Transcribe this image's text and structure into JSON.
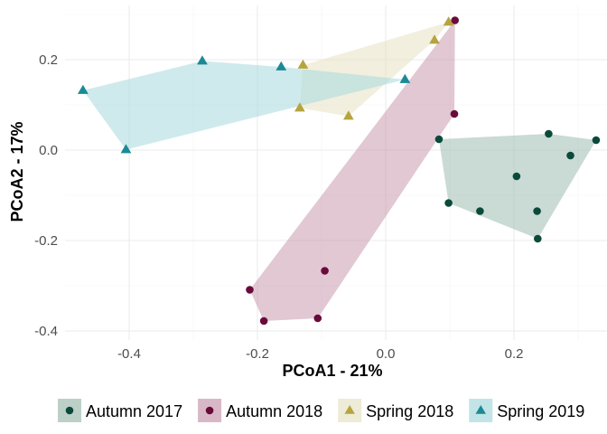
{
  "chart_data": {
    "type": "scatter",
    "title": "",
    "xlabel": "PCoA1 - 21%",
    "ylabel": "PCoA2 - 17%",
    "xlim": [
      -0.5,
      0.345
    ],
    "ylim": [
      -0.42,
      0.32
    ],
    "x_ticks": [
      -0.4,
      -0.2,
      0.0,
      0.2
    ],
    "x_tick_labels": [
      "-0.4",
      "-0.2",
      "0.0",
      "0.2"
    ],
    "y_ticks": [
      -0.4,
      -0.2,
      0.0,
      0.2
    ],
    "y_tick_labels": [
      "-0.4",
      "-0.2",
      "0.0",
      "0.2"
    ],
    "grid": true,
    "legend_position": "bottom",
    "hulls": true,
    "series": [
      {
        "name": "Autumn 2017",
        "color": "#0b4a3a",
        "fill": "#9fbcb1",
        "marker": "circle",
        "points": [
          [
            0.083,
            0.024
          ],
          [
            0.098,
            -0.117
          ],
          [
            0.147,
            -0.135
          ],
          [
            0.204,
            -0.058
          ],
          [
            0.236,
            -0.135
          ],
          [
            0.237,
            -0.196
          ],
          [
            0.254,
            0.036
          ],
          [
            0.288,
            -0.012
          ],
          [
            0.328,
            0.022
          ]
        ]
      },
      {
        "name": "Autumn 2018",
        "color": "#6a0a3b",
        "fill": "#c89aae",
        "marker": "circle",
        "points": [
          [
            0.108,
            0.287
          ],
          [
            0.107,
            0.08
          ],
          [
            -0.095,
            -0.267
          ],
          [
            -0.106,
            -0.372
          ],
          [
            -0.19,
            -0.378
          ],
          [
            -0.212,
            -0.309
          ]
        ]
      },
      {
        "name": "Spring 2018",
        "color": "#b5a43f",
        "fill": "#e7e2c5",
        "marker": "triangle",
        "points": [
          [
            0.098,
            0.283
          ],
          [
            0.076,
            0.243
          ],
          [
            -0.129,
            0.188
          ],
          [
            -0.134,
            0.093
          ],
          [
            -0.058,
            0.075
          ]
        ]
      },
      {
        "name": "Spring 2019",
        "color": "#1b8a96",
        "fill": "#a8d8dc",
        "marker": "triangle",
        "points": [
          [
            -0.472,
            0.132
          ],
          [
            -0.286,
            0.197
          ],
          [
            -0.163,
            0.184
          ],
          [
            0.03,
            0.156
          ],
          [
            -0.405,
            0.001
          ]
        ]
      }
    ]
  }
}
